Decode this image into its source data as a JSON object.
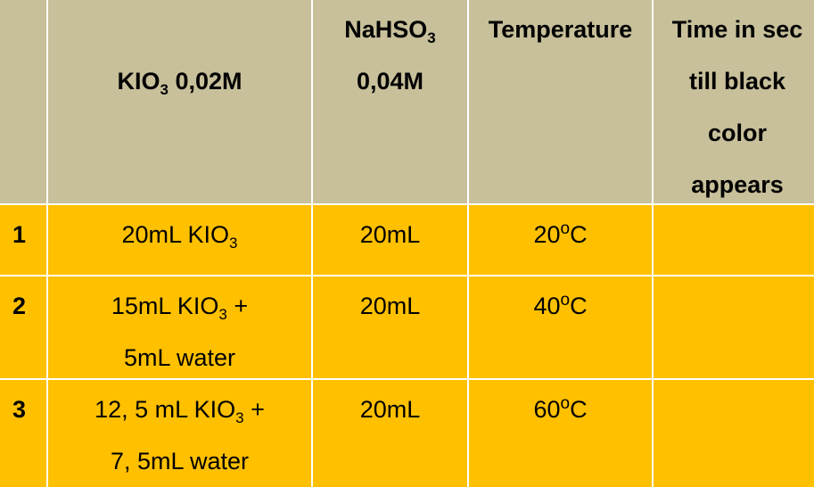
{
  "table": {
    "headers": {
      "index": "",
      "kio3": {
        "pre": "KIO",
        "sub": "3",
        "post": " 0,02M"
      },
      "nahso3": {
        "pre": "NaHSO",
        "sub": "3",
        "line2": "0,04M"
      },
      "temperature": "Temperature",
      "time": [
        "Time in  sec",
        "till black",
        "color",
        "appears"
      ]
    },
    "rows": [
      {
        "index": "1",
        "kio3_line1": {
          "pre": "20mL KIO",
          "sub": "3",
          "post": ""
        },
        "kio3_line2": "",
        "nahso3": "20mL",
        "temp": {
          "value": "20",
          "sup": "o",
          "unit": "C"
        },
        "time": ""
      },
      {
        "index": "2",
        "kio3_line1": {
          "pre": "15mL KIO",
          "sub": "3",
          "post": " +"
        },
        "kio3_line2": "5mL water",
        "nahso3": "20mL",
        "temp": {
          "value": "40",
          "sup": "o",
          "unit": "C"
        },
        "time": ""
      },
      {
        "index": "3",
        "kio3_line1": {
          "pre": "12, 5 mL KIO",
          "sub": "3",
          "post": " +"
        },
        "kio3_line2": "7, 5mL water",
        "nahso3": "20mL",
        "temp": {
          "value": "60",
          "sup": "o",
          "unit": "C"
        },
        "time": ""
      }
    ]
  },
  "colors": {
    "header_bg": "#c7c09a",
    "row_bg": "#ffc000",
    "grid_lines": "#ffffff"
  }
}
